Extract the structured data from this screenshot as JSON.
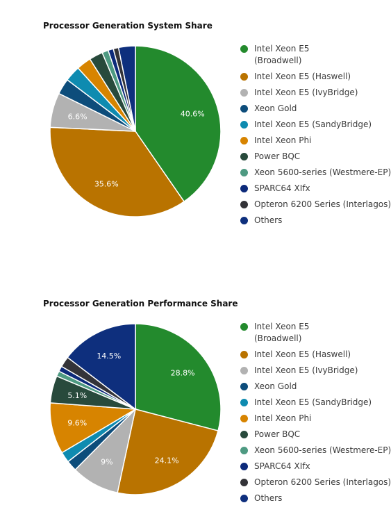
{
  "colors": {
    "Intel Xeon E5 (Broadwell)": "#238a2d",
    "Intel Xeon E5 (Haswell)": "#b97300",
    "Intel Xeon E5 (IvyBridge)": "#b2b2b2",
    "Xeon Gold": "#0d4d7b",
    "Intel Xeon E5 (SandyBridge)": "#0e8bb0",
    "Intel Xeon Phi": "#d78400",
    "Power BQC": "#284a3c",
    "Xeon 5600-series (Westmere-EP)": "#4e9a82",
    "SPARC64 XIfx": "#0c2a7a",
    "Opteron 6200 Series (Interlagos)": "#333338",
    "Others": "#0e2f7d"
  },
  "legend_labels": [
    "Intel Xeon E5 (Broadwell)",
    "Intel Xeon E5 (Haswell)",
    "Intel Xeon E5 (IvyBridge)",
    "Xeon Gold",
    "Intel Xeon E5 (SandyBridge)",
    "Intel Xeon Phi",
    "Power BQC",
    "Xeon 5600-series (Westmere-EP)",
    "SPARC64 XIfx",
    "Opteron 6200 Series (Interlagos)",
    "Others"
  ],
  "chart_data": [
    {
      "type": "pie",
      "title": "Processor Generation System Share",
      "categories": [
        "Intel Xeon E5 (Broadwell)",
        "Intel Xeon E5 (Haswell)",
        "Intel Xeon E5 (IvyBridge)",
        "Xeon Gold",
        "Intel Xeon E5 (SandyBridge)",
        "Intel Xeon Phi",
        "Power BQC",
        "Xeon 5600-series (Westmere-EP)",
        "SPARC64 XIfx",
        "Opteron 6200 Series (Interlagos)",
        "Others"
      ],
      "values": [
        40.6,
        35.6,
        6.6,
        3.0,
        3.0,
        2.8,
        2.6,
        1.2,
        1.0,
        1.0,
        3.2
      ],
      "data_labels": [
        "40.6%",
        "35.6%",
        "6.6%",
        "",
        "",
        "",
        "",
        "",
        "",
        "",
        ""
      ],
      "legend": "right"
    },
    {
      "type": "pie",
      "title": "Processor Generation Performance Share",
      "categories": [
        "Intel Xeon E5 (Broadwell)",
        "Intel Xeon E5 (Haswell)",
        "Intel Xeon E5 (IvyBridge)",
        "Xeon Gold",
        "Intel Xeon E5 (SandyBridge)",
        "Intel Xeon Phi",
        "Power BQC",
        "Xeon 5600-series (Westmere-EP)",
        "SPARC64 XIfx",
        "Opteron 6200 Series (Interlagos)",
        "Others"
      ],
      "values": [
        28.8,
        24.1,
        9.0,
        2.0,
        2.0,
        9.6,
        5.1,
        1.0,
        1.0,
        2.0,
        14.5
      ],
      "data_labels": [
        "28.8%",
        "24.1%",
        "9%",
        "",
        "",
        "9.6%",
        "5.1%",
        "",
        "",
        "",
        "14.5%"
      ],
      "legend": "right"
    }
  ]
}
